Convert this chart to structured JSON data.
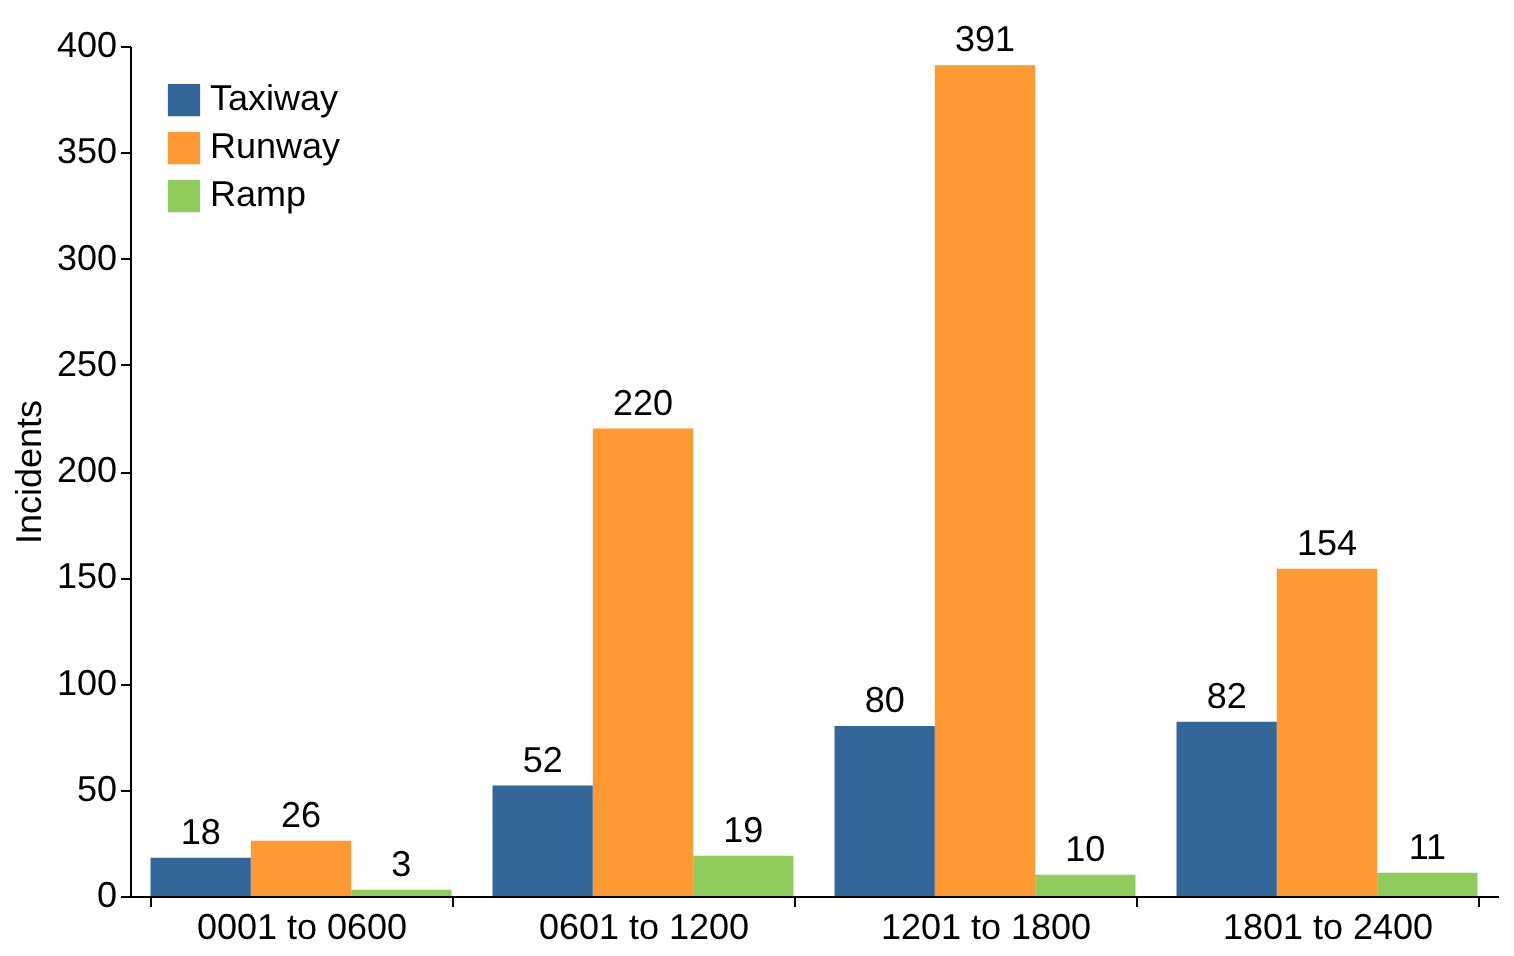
{
  "chart_data": {
    "type": "bar",
    "ylabel": "Incidents",
    "categories": [
      "0001 to 0600",
      "0601 to 1200",
      "1201 to 1800",
      "1801 to 2400"
    ],
    "series": [
      {
        "name": "Taxiway",
        "color": "#336699",
        "values": [
          18,
          52,
          80,
          82
        ]
      },
      {
        "name": "Runway",
        "color": "#ff9933",
        "values": [
          26,
          220,
          391,
          154
        ]
      },
      {
        "name": "Ramp",
        "color": "#8fcc5c",
        "values": [
          3,
          19,
          10,
          11
        ]
      }
    ],
    "ylim": [
      0,
      400
    ],
    "yticks": [
      0,
      50,
      100,
      150,
      200,
      250,
      300,
      350,
      400
    ],
    "data_labels": true,
    "legend": "top left"
  }
}
